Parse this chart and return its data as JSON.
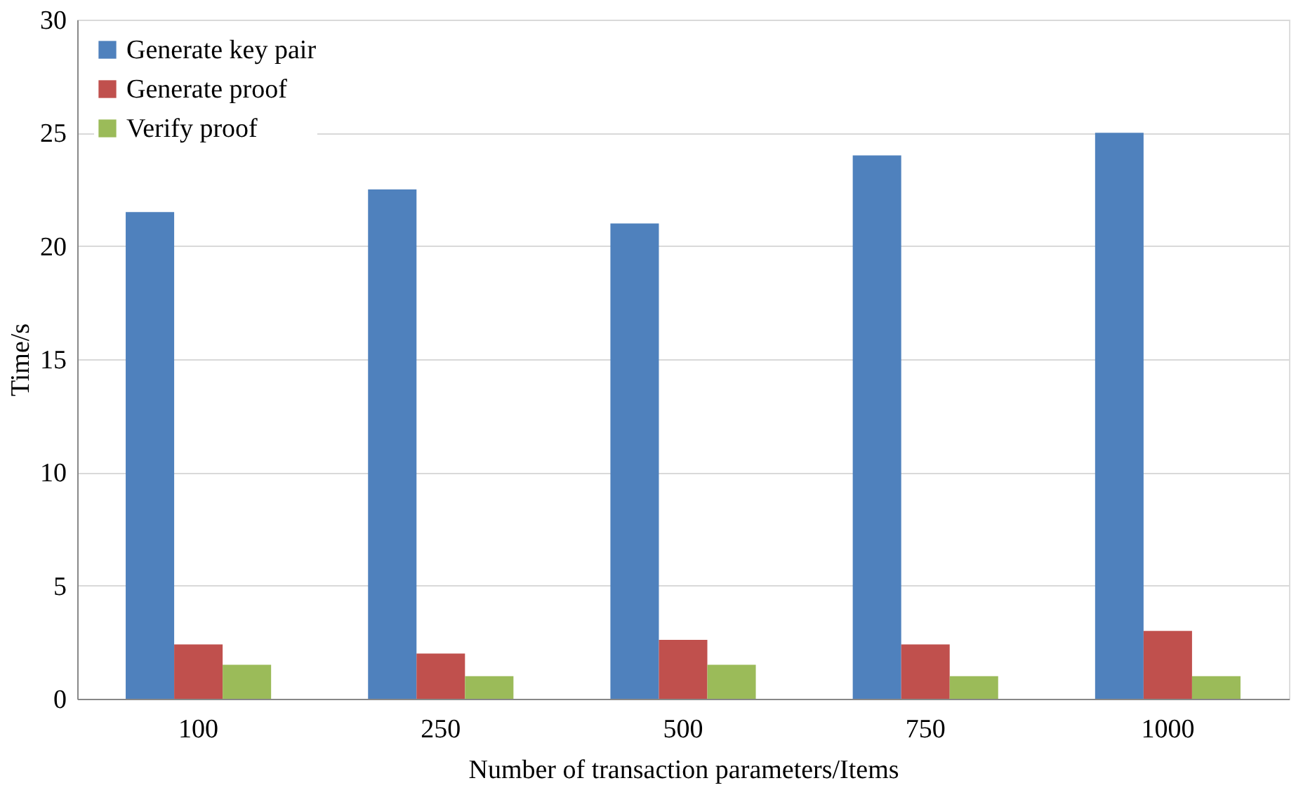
{
  "chart_data": {
    "type": "bar",
    "xlabel": "Number of transaction parameters/Items",
    "ylabel": "Time/s",
    "categories": [
      "100",
      "250",
      "500",
      "750",
      "1000"
    ],
    "series": [
      {
        "name": "Generate key pair",
        "color": "#4f81bd",
        "values": [
          21.5,
          22.5,
          21,
          24,
          25
        ]
      },
      {
        "name": "Generate proof",
        "color": "#c0504d",
        "values": [
          2.4,
          2.0,
          2.6,
          2.4,
          3.0
        ]
      },
      {
        "name": "Verify proof",
        "color": "#9bbb59",
        "values": [
          1.5,
          1.0,
          1.5,
          1.0,
          1.0
        ]
      }
    ],
    "ylim": [
      0,
      30
    ],
    "yticks": [
      0,
      5,
      10,
      15,
      20,
      25,
      30
    ],
    "grid": "y",
    "legend": "top left"
  }
}
